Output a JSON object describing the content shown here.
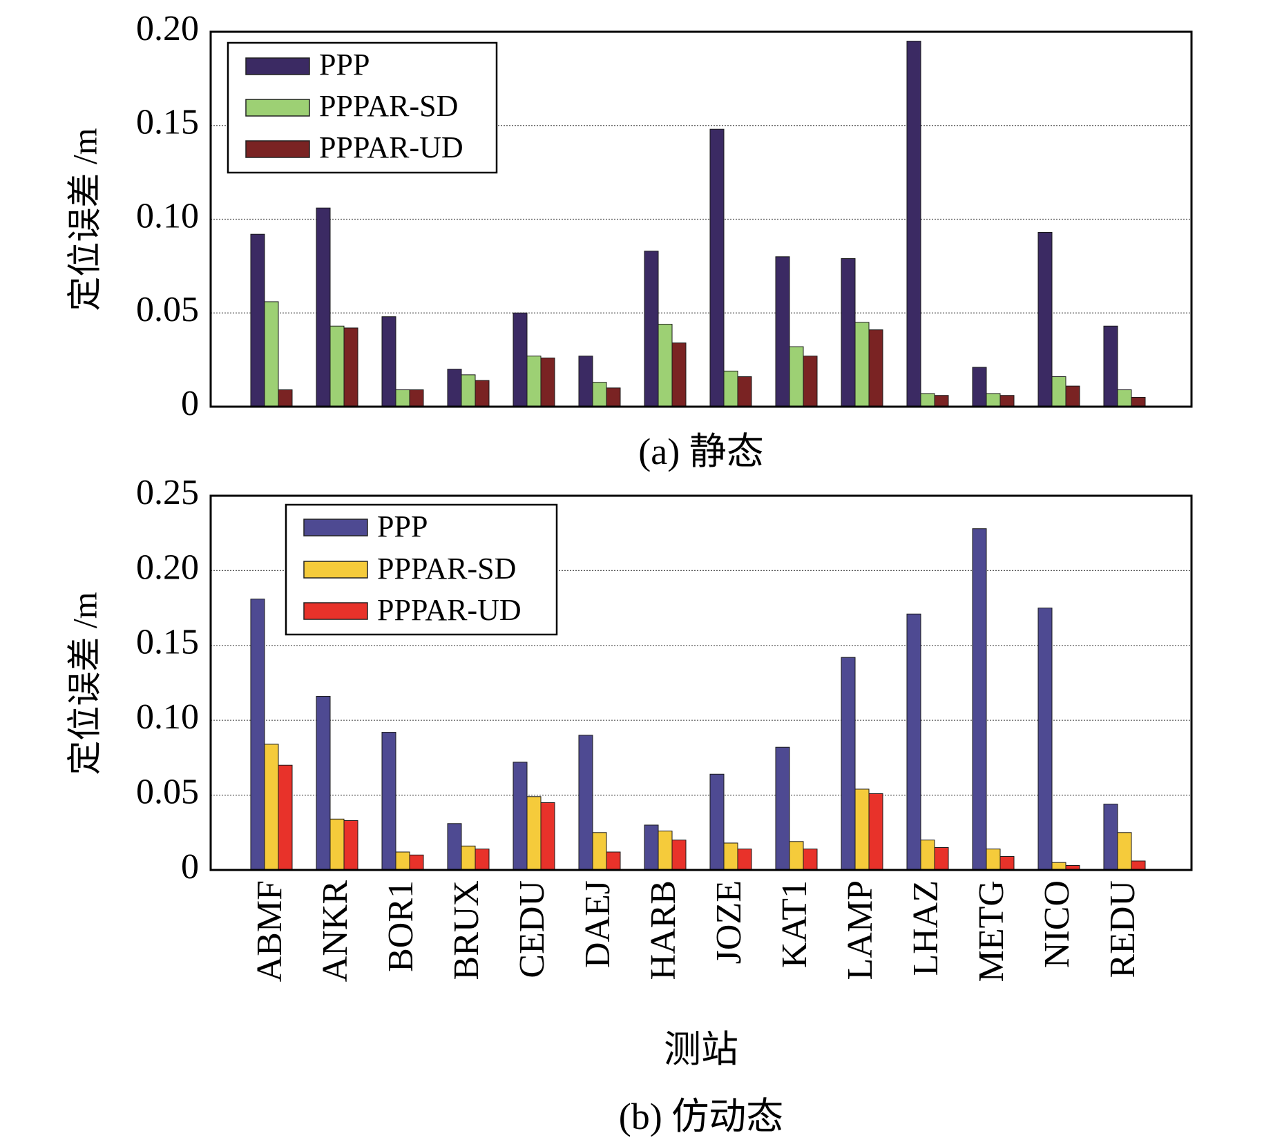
{
  "colors": {
    "a_ppp": "#3b2a63",
    "a_sd": "#9dd074",
    "a_ud": "#7a2323",
    "b_ppp": "#4e4a92",
    "b_sd": "#f5cb3b",
    "b_ud": "#e8322a",
    "grid": "#555555"
  },
  "chart_data": [
    {
      "type": "bar",
      "panel": "a",
      "caption": "(a) 静态",
      "ylabel": "定位误差 /m",
      "xlabel": "",
      "ylim": [
        0,
        0.2
      ],
      "yticks": [
        "0",
        "0.05",
        "0.10",
        "0.15",
        "0.20"
      ],
      "ytick_values": [
        0,
        0.05,
        0.1,
        0.15,
        0.2
      ],
      "legend_position": "top-left",
      "categories": [
        "ABMF",
        "ANKR",
        "BOR1",
        "BRUX",
        "CEDU",
        "DAEJ",
        "HARB",
        "JOZE",
        "KAT1",
        "LAMP",
        "LHAZ",
        "METG",
        "NICO",
        "REDU"
      ],
      "series": [
        {
          "name": "PPP",
          "values": [
            0.092,
            0.106,
            0.048,
            0.02,
            0.05,
            0.027,
            0.083,
            0.148,
            0.08,
            0.079,
            0.195,
            0.021,
            0.093,
            0.043
          ]
        },
        {
          "name": "PPPAR-SD",
          "values": [
            0.056,
            0.043,
            0.009,
            0.017,
            0.027,
            0.013,
            0.044,
            0.019,
            0.032,
            0.045,
            0.007,
            0.007,
            0.016,
            0.009
          ]
        },
        {
          "name": "PPPAR-UD",
          "values": [
            0.009,
            0.042,
            0.009,
            0.014,
            0.026,
            0.01,
            0.034,
            0.016,
            0.027,
            0.041,
            0.006,
            0.006,
            0.011,
            0.005
          ]
        }
      ]
    },
    {
      "type": "bar",
      "panel": "b",
      "caption": "(b) 仿动态",
      "ylabel": "定位误差 /m",
      "xlabel": "测站",
      "ylim": [
        0,
        0.25
      ],
      "yticks": [
        "0",
        "0.05",
        "0.10",
        "0.15",
        "0.20",
        "0.25"
      ],
      "ytick_values": [
        0,
        0.05,
        0.1,
        0.15,
        0.2,
        0.25
      ],
      "legend_position": "top-left",
      "categories": [
        "ABMF",
        "ANKR",
        "BOR1",
        "BRUX",
        "CEDU",
        "DAEJ",
        "HARB",
        "JOZE",
        "KAT1",
        "LAMP",
        "LHAZ",
        "METG",
        "NICO",
        "REDU"
      ],
      "series": [
        {
          "name": "PPP",
          "values": [
            0.181,
            0.116,
            0.092,
            0.031,
            0.072,
            0.09,
            0.03,
            0.064,
            0.082,
            0.142,
            0.171,
            0.228,
            0.175,
            0.044
          ]
        },
        {
          "name": "PPPAR-SD",
          "values": [
            0.084,
            0.034,
            0.012,
            0.016,
            0.049,
            0.025,
            0.026,
            0.018,
            0.019,
            0.054,
            0.02,
            0.014,
            0.005,
            0.025
          ]
        },
        {
          "name": "PPPAR-UD",
          "values": [
            0.07,
            0.033,
            0.01,
            0.014,
            0.045,
            0.012,
            0.02,
            0.014,
            0.014,
            0.051,
            0.015,
            0.009,
            0.003,
            0.006
          ]
        }
      ]
    }
  ]
}
